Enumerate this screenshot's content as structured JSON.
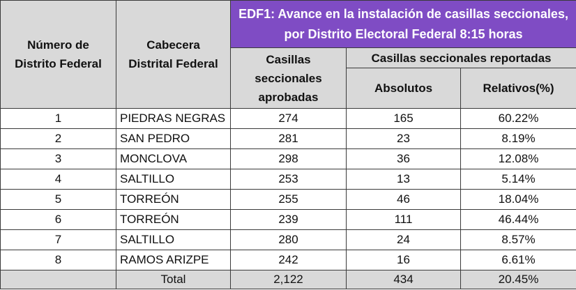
{
  "table": {
    "title_line1": "EDF1: Avance en la instalación de casillas seccionales,",
    "title_line2": "por Distrito Electoral Federal 8:15 horas",
    "headers": {
      "distrito_line1": "Número de",
      "distrito_line2": "Distrito Federal",
      "cabecera_line1": "Cabecera",
      "cabecera_line2": "Distrital Federal",
      "aprobadas": "Casillas seccionales aprobadas",
      "reportadas": "Casillas seccionales reportadas",
      "absolutos": "Absolutos",
      "relativos": "Relativos(%)"
    },
    "rows": [
      {
        "distrito": "1",
        "cabecera": "PIEDRAS NEGRAS",
        "aprobadas": "274",
        "absolutos": "165",
        "relativos": "60.22%"
      },
      {
        "distrito": "2",
        "cabecera": "SAN PEDRO",
        "aprobadas": "281",
        "absolutos": "23",
        "relativos": "8.19%"
      },
      {
        "distrito": "3",
        "cabecera": "MONCLOVA",
        "aprobadas": "298",
        "absolutos": "36",
        "relativos": "12.08%"
      },
      {
        "distrito": "4",
        "cabecera": "SALTILLO",
        "aprobadas": "253",
        "absolutos": "13",
        "relativos": "5.14%"
      },
      {
        "distrito": "5",
        "cabecera": "TORREÓN",
        "aprobadas": "255",
        "absolutos": "46",
        "relativos": "18.04%"
      },
      {
        "distrito": "6",
        "cabecera": "TORREÓN",
        "aprobadas": "239",
        "absolutos": "111",
        "relativos": "46.44%"
      },
      {
        "distrito": "7",
        "cabecera": "SALTILLO",
        "aprobadas": "280",
        "absolutos": "24",
        "relativos": "8.57%"
      },
      {
        "distrito": "8",
        "cabecera": "RAMOS ARIZPE",
        "aprobadas": "242",
        "absolutos": "16",
        "relativos": "6.61%"
      }
    ],
    "total": {
      "label": "Total",
      "aprobadas": "2,122",
      "absolutos": "434",
      "relativos": "20.45%"
    },
    "colors": {
      "title_bg": "#7f4cc4",
      "header_bg": "#d9d9d9",
      "border": "#3a3a3a"
    }
  }
}
